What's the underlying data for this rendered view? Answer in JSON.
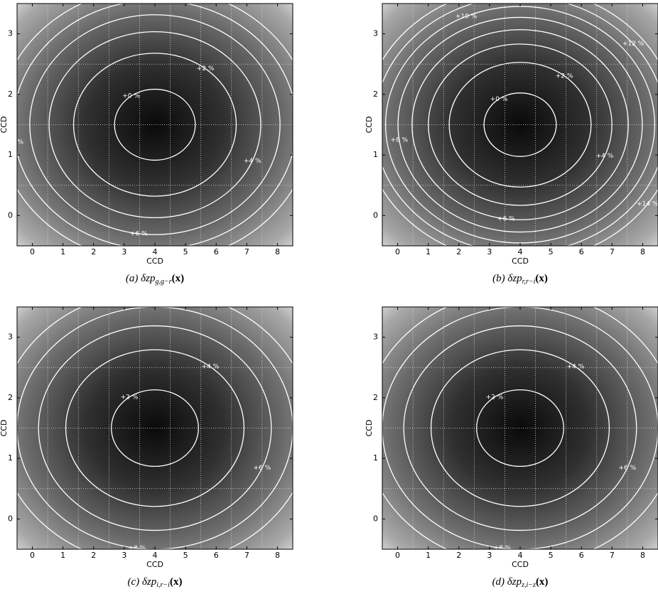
{
  "chart_data": [
    {
      "type": "contour",
      "caption_prefix": "(a) δzp",
      "caption_subscript": "g,g−r",
      "caption_suffix": "(x)",
      "xlabel": "CCD",
      "ylabel": "CCD",
      "xlim": [
        -0.5,
        8.5
      ],
      "ylim": [
        -0.5,
        3.5
      ],
      "xticks": [
        0,
        1,
        2,
        3,
        4,
        5,
        6,
        7,
        8
      ],
      "yticks": [
        0,
        1,
        2,
        3
      ],
      "levels": [
        {
          "value": 0,
          "label": "+0 %"
        },
        {
          "value": 2,
          "label": "+2 %"
        },
        {
          "value": 4,
          "label": "+4 %"
        },
        {
          "value": 6,
          "label": "+6 %"
        },
        {
          "value": 8,
          "label": "+8 %"
        },
        {
          "value": 10,
          "label": "+10 %"
        }
      ]
    },
    {
      "type": "contour",
      "caption_prefix": "(b) δzp",
      "caption_subscript": "r,r−i",
      "caption_suffix": "(x)",
      "xlabel": "CCD",
      "ylabel": "CCD",
      "xlim": [
        -0.5,
        8.5
      ],
      "ylim": [
        -0.5,
        3.5
      ],
      "xticks": [
        0,
        1,
        2,
        3,
        4,
        5,
        6,
        7,
        8
      ],
      "yticks": [
        0,
        1,
        2,
        3
      ],
      "levels": [
        {
          "value": 0,
          "label": "+0 %"
        },
        {
          "value": 2,
          "label": "+2 %"
        },
        {
          "value": 4,
          "label": "+4 %"
        },
        {
          "value": 6,
          "label": "+6 %"
        },
        {
          "value": 8,
          "label": "+8 %"
        },
        {
          "value": 10,
          "label": "+10 %"
        },
        {
          "value": 12,
          "label": "+12 %"
        },
        {
          "value": 14,
          "label": "+14 %"
        }
      ]
    },
    {
      "type": "contour",
      "caption_prefix": "(c) δzp",
      "caption_subscript": "i,r−i",
      "caption_suffix": "(x)",
      "xlabel": "CCD",
      "ylabel": "CCD",
      "xlim": [
        -0.5,
        8.5
      ],
      "ylim": [
        -0.5,
        3.5
      ],
      "xticks": [
        0,
        1,
        2,
        3,
        4,
        5,
        6,
        7,
        8
      ],
      "yticks": [
        0,
        1,
        2,
        3
      ],
      "levels": [
        {
          "value": 2,
          "label": "+2 %"
        },
        {
          "value": 4,
          "label": "+4 %"
        },
        {
          "value": 6,
          "label": "+6 %"
        },
        {
          "value": 8,
          "label": "+8 %"
        },
        {
          "value": 10,
          "label": "+10 %"
        }
      ]
    },
    {
      "type": "contour",
      "caption_prefix": "(d) δzp",
      "caption_subscript": "z,i−z",
      "caption_suffix": "(x)",
      "xlabel": "CCD",
      "ylabel": "CCD",
      "xlim": [
        -0.5,
        8.5
      ],
      "ylim": [
        -0.5,
        3.5
      ],
      "xticks": [
        0,
        1,
        2,
        3,
        4,
        5,
        6,
        7,
        8
      ],
      "yticks": [
        0,
        1,
        2,
        3
      ],
      "levels": [
        {
          "value": 2,
          "label": "+2 %"
        },
        {
          "value": 4,
          "label": "+4 %"
        },
        {
          "value": 6,
          "label": "+6 %"
        },
        {
          "value": 8,
          "label": "+8 %"
        },
        {
          "value": 10,
          "label": "+10 %"
        }
      ]
    }
  ]
}
